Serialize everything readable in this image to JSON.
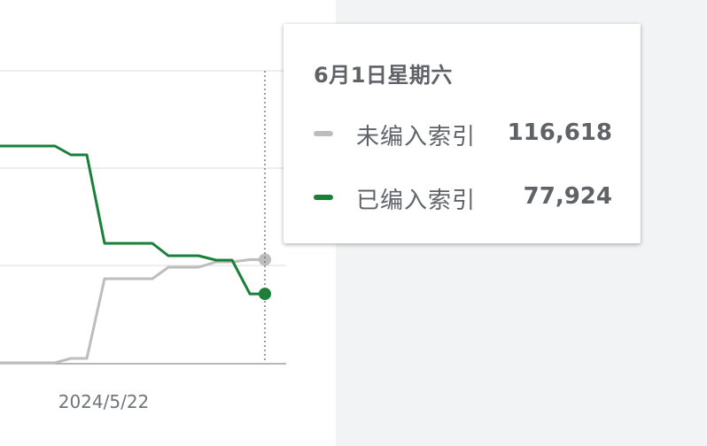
{
  "chart_data": {
    "type": "line",
    "x_tick_labels": [
      "2024/5/22"
    ],
    "series": [
      {
        "name": "未编入索引",
        "color": "#bdbdbd",
        "values": [
          0,
          0,
          0,
          0,
          5000,
          5000,
          95000,
          95000,
          95000,
          108000,
          108000,
          114000,
          114000,
          116618,
          116618
        ]
      },
      {
        "name": "已编入索引",
        "color": "#188038",
        "values": [
          245000,
          245000,
          245000,
          245000,
          235000,
          235000,
          135000,
          135000,
          135000,
          121000,
          121000,
          116000,
          116000,
          77924,
          77924
        ]
      }
    ],
    "tooltip": {
      "date": "6月1日星期六",
      "rows": [
        {
          "label": "未编入索引",
          "value": "116,618",
          "color": "#bdbdbd"
        },
        {
          "label": "已编入索引",
          "value": "77,924",
          "color": "#188038"
        }
      ]
    }
  }
}
